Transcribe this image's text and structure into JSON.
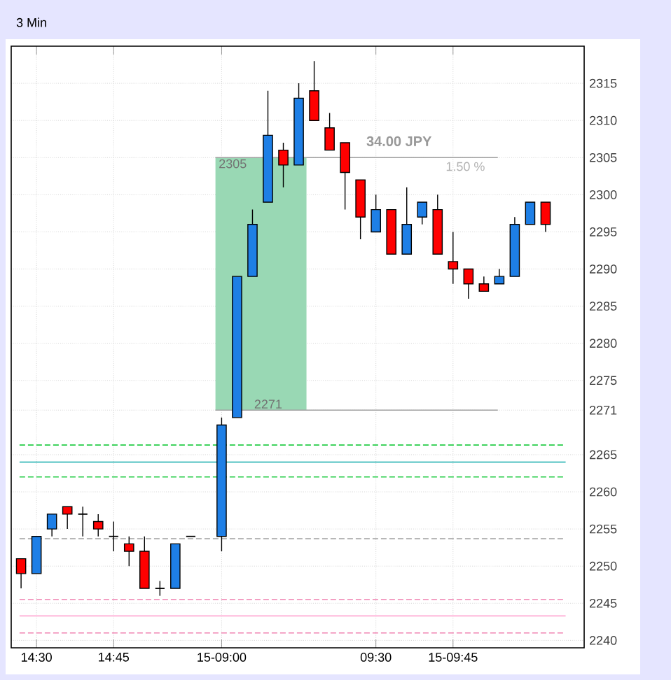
{
  "chart_data": {
    "type": "candlestick",
    "title": "3 Min",
    "categories": [
      null,
      "14:30",
      null,
      null,
      null,
      null,
      "14:45",
      null,
      null,
      null,
      null,
      null,
      null,
      "15-09:00",
      null,
      null,
      null,
      null,
      null,
      null,
      null,
      null,
      null,
      "09:30",
      null,
      null,
      null,
      null,
      "15-09:45",
      null,
      null,
      null,
      null,
      null,
      null
    ],
    "ohlc": [
      [
        2251,
        2251,
        2247,
        2249
      ],
      [
        2249,
        2254,
        2249,
        2254
      ],
      [
        2255,
        2257,
        2254,
        2257
      ],
      [
        2258,
        2258,
        2255,
        2257
      ],
      [
        2257,
        2258,
        2254,
        2257
      ],
      [
        2256,
        2257,
        2254,
        2255
      ],
      [
        2254,
        2256,
        2252,
        2254
      ],
      [
        2253,
        2254,
        2250,
        2252
      ],
      [
        2252,
        2254,
        2247,
        2247
      ],
      [
        2247,
        2248,
        2246,
        2247
      ],
      [
        2247,
        2253,
        2247,
        2253
      ],
      [
        2254,
        2254,
        2254,
        2254
      ],
      null,
      [
        2254,
        2270,
        2252,
        2269
      ],
      [
        2270,
        2289,
        2270,
        2289
      ],
      [
        2289,
        2298,
        2289,
        2296
      ],
      [
        2299,
        2314,
        2299,
        2308
      ],
      [
        2306,
        2307,
        2301,
        2304
      ],
      [
        2304,
        2315,
        2304,
        2313
      ],
      [
        2314,
        2318,
        2310,
        2310
      ],
      [
        2309,
        2311,
        2306,
        2306
      ],
      [
        2307,
        2307,
        2298,
        2303
      ],
      [
        2302,
        2302,
        2294,
        2297
      ],
      [
        2295,
        2300,
        2295,
        2298
      ],
      [
        2298,
        2298,
        2292,
        2292
      ],
      [
        2292,
        2301,
        2292,
        2296
      ],
      [
        2297,
        2299,
        2296,
        2299
      ],
      [
        2298,
        2300,
        2292,
        2292
      ],
      [
        2291,
        2295,
        2288,
        2290
      ],
      [
        2290,
        2290,
        2286,
        2288
      ],
      [
        2288,
        2289,
        2287,
        2287
      ],
      [
        2288,
        2290,
        2288,
        2289
      ],
      [
        2289,
        2297,
        2289,
        2296
      ],
      [
        2296,
        2299,
        2296,
        2299
      ],
      [
        2299,
        2299,
        2295,
        2296
      ]
    ],
    "colors": [
      "#ff0000",
      "#1e7fe6",
      "#1e7fe6",
      "#ff0000",
      "#000000",
      "#ff0000",
      "#000000",
      "#ff0000",
      "#ff0000",
      "#000000",
      "#1e7fe6",
      "#000000",
      null,
      "#1e7fe6",
      "#1e7fe6",
      "#1e7fe6",
      "#1e7fe6",
      "#ff0000",
      "#1e7fe6",
      "#ff0000",
      "#ff0000",
      "#ff0000",
      "#ff0000",
      "#1e7fe6",
      "#ff0000",
      "#1e7fe6",
      "#1e7fe6",
      "#ff0000",
      "#ff0000",
      "#ff0000",
      "#ff0000",
      "#1e7fe6",
      "#1e7fe6",
      "#1e7fe6",
      "#ff0000"
    ],
    "ylim": [
      2239,
      2320
    ],
    "yticks": [
      2240,
      2245,
      2250,
      2255,
      2260,
      2265,
      2271,
      2275,
      2280,
      2285,
      2290,
      2295,
      2300,
      2305,
      2310,
      2315
    ],
    "grid": true,
    "ref_lines": [
      {
        "axis": "y",
        "value": 2305,
        "label": "2305",
        "color": "#a0a0a0",
        "line_style": "solid"
      },
      {
        "axis": "y",
        "value": 2271,
        "label": "2271",
        "color": "#a0a0a0",
        "line_style": "solid"
      },
      {
        "axis": "y",
        "value": 2266.3,
        "color": "#22cc44",
        "line_style": "dashed"
      },
      {
        "axis": "y",
        "value": 2264,
        "color": "#11aaaa",
        "line_style": "solid"
      },
      {
        "axis": "y",
        "value": 2262,
        "color": "#22cc44",
        "line_style": "dashed"
      },
      {
        "axis": "y",
        "value": 2253.7,
        "color": "#a0a0a0",
        "line_style": "dashed"
      },
      {
        "axis": "y",
        "value": 2245.5,
        "color": "#f080b0",
        "line_style": "dashed"
      },
      {
        "axis": "y",
        "value": 2243.3,
        "color": "#ffaad4",
        "line_style": "solid"
      },
      {
        "axis": "y",
        "value": 2241,
        "color": "#f080b0",
        "line_style": "dashed"
      }
    ],
    "bands": [
      {
        "axis": "y",
        "from": 2271,
        "to": 2305,
        "color": "#99d8b4"
      }
    ],
    "annotations": [
      "34.00 JPY",
      "1.50 %"
    ]
  }
}
